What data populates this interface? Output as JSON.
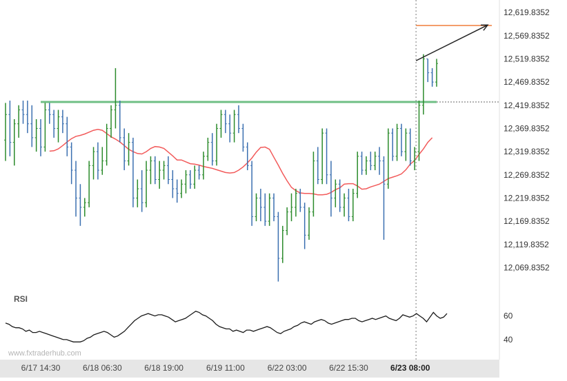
{
  "watermark": "www.fxtraderhub.com",
  "chart_data": [
    {
      "type": "ohlc",
      "pane": "price",
      "y_ticks": [
        "12,619.8352",
        "12,569.8352",
        "12,519.8352",
        "12,469.8352",
        "12,419.8352",
        "12,369.8352",
        "12,319.8352",
        "12,269.8352",
        "12,219.8352",
        "12,169.8352",
        "12,119.8352",
        "12,069.8352"
      ],
      "ylim": [
        12035,
        12635
      ],
      "x_tick_labels": [
        "6/17 14:30",
        "6/18 06:30",
        "6/18 19:00",
        "6/19 11:00",
        "6/22 03:00",
        "6/22 15:30",
        "6/23 08:00"
      ],
      "x_tick_index": [
        8,
        22,
        36,
        50,
        64,
        78,
        92
      ],
      "bars": [
        [
          12345,
          12425,
          12300,
          12400
        ],
        [
          12400,
          12430,
          12310,
          12340
        ],
        [
          12340,
          12390,
          12290,
          12380
        ],
        [
          12380,
          12420,
          12350,
          12410
        ],
        [
          12410,
          12430,
          12380,
          12400
        ],
        [
          12400,
          12430,
          12360,
          12380
        ],
        [
          12380,
          12420,
          12330,
          12350
        ],
        [
          12350,
          12390,
          12320,
          12370
        ],
        [
          12370,
          12390,
          12310,
          12330
        ],
        [
          12330,
          12425,
          12320,
          12410
        ],
        [
          12410,
          12425,
          12380,
          12400
        ],
        [
          12400,
          12410,
          12350,
          12370
        ],
        [
          12370,
          12410,
          12340,
          12395
        ],
        [
          12395,
          12410,
          12360,
          12380
        ],
        [
          12380,
          12395,
          12310,
          12330
        ],
        [
          12330,
          12340,
          12250,
          12280
        ],
        [
          12280,
          12300,
          12180,
          12220
        ],
        [
          12220,
          12250,
          12160,
          12200
        ],
        [
          12200,
          12220,
          12180,
          12210
        ],
        [
          12210,
          12300,
          12200,
          12290
        ],
        [
          12290,
          12330,
          12260,
          12320
        ],
        [
          12320,
          12340,
          12260,
          12280
        ],
        [
          12280,
          12330,
          12270,
          12300
        ],
        [
          12300,
          12380,
          12290,
          12370
        ],
        [
          12370,
          12420,
          12350,
          12410
        ],
        [
          12410,
          12500,
          12370,
          12420
        ],
        [
          12420,
          12430,
          12340,
          12350
        ],
        [
          12350,
          12370,
          12280,
          12300
        ],
        [
          12300,
          12360,
          12290,
          12340
        ],
        [
          12340,
          12350,
          12200,
          12220
        ],
        [
          12220,
          12260,
          12200,
          12240
        ],
        [
          12240,
          12280,
          12190,
          12210
        ],
        [
          12210,
          12300,
          12200,
          12280
        ],
        [
          12280,
          12310,
          12250,
          12300
        ],
        [
          12300,
          12310,
          12250,
          12260
        ],
        [
          12260,
          12300,
          12240,
          12280
        ],
        [
          12280,
          12300,
          12260,
          12290
        ],
        [
          12290,
          12310,
          12250,
          12260
        ],
        [
          12260,
          12280,
          12220,
          12240
        ],
        [
          12240,
          12260,
          12210,
          12230
        ],
        [
          12230,
          12260,
          12220,
          12250
        ],
        [
          12250,
          12280,
          12230,
          12270
        ],
        [
          12270,
          12280,
          12240,
          12250
        ],
        [
          12250,
          12290,
          12240,
          12280
        ],
        [
          12280,
          12290,
          12260,
          12270
        ],
        [
          12270,
          12320,
          12260,
          12310
        ],
        [
          12310,
          12350,
          12300,
          12340
        ],
        [
          12340,
          12360,
          12290,
          12300
        ],
        [
          12300,
          12380,
          12290,
          12370
        ],
        [
          12370,
          12410,
          12350,
          12400
        ],
        [
          12400,
          12410,
          12360,
          12380
        ],
        [
          12380,
          12400,
          12340,
          12360
        ],
        [
          12360,
          12410,
          12340,
          12400
        ],
        [
          12400,
          12420,
          12360,
          12370
        ],
        [
          12370,
          12380,
          12320,
          12330
        ],
        [
          12330,
          12340,
          12280,
          12290
        ],
        [
          12290,
          12300,
          12160,
          12180
        ],
        [
          12180,
          12230,
          12170,
          12220
        ],
        [
          12220,
          12240,
          12170,
          12200
        ],
        [
          12200,
          12230,
          12160,
          12170
        ],
        [
          12170,
          12230,
          12160,
          12220
        ],
        [
          12220,
          12230,
          12170,
          12180
        ],
        [
          12180,
          12190,
          12040,
          12090
        ],
        [
          12090,
          12160,
          12080,
          12150
        ],
        [
          12150,
          12200,
          12140,
          12190
        ],
        [
          12190,
          12230,
          12170,
          12200
        ],
        [
          12200,
          12240,
          12180,
          12230
        ],
        [
          12230,
          12240,
          12190,
          12200
        ],
        [
          12200,
          12210,
          12110,
          12140
        ],
        [
          12140,
          12200,
          12130,
          12190
        ],
        [
          12190,
          12320,
          12180,
          12300
        ],
        [
          12300,
          12330,
          12250,
          12260
        ],
        [
          12260,
          12370,
          12250,
          12360
        ],
        [
          12360,
          12370,
          12250,
          12270
        ],
        [
          12270,
          12300,
          12180,
          12220
        ],
        [
          12220,
          12260,
          12200,
          12250
        ],
        [
          12250,
          12260,
          12190,
          12200
        ],
        [
          12200,
          12230,
          12180,
          12220
        ],
        [
          12220,
          12240,
          12170,
          12180
        ],
        [
          12180,
          12240,
          12170,
          12230
        ],
        [
          12230,
          12320,
          12220,
          12310
        ],
        [
          12310,
          12320,
          12270,
          12280
        ],
        [
          12280,
          12310,
          12270,
          12300
        ],
        [
          12300,
          12320,
          12280,
          12290
        ],
        [
          12290,
          12320,
          12280,
          12310
        ],
        [
          12310,
          12330,
          12270,
          12300
        ],
        [
          12300,
          12310,
          12130,
          12250
        ],
        [
          12250,
          12370,
          12240,
          12360
        ],
        [
          12360,
          12370,
          12300,
          12310
        ],
        [
          12310,
          12380,
          12300,
          12370
        ],
        [
          12370,
          12380,
          12310,
          12320
        ],
        [
          12320,
          12370,
          12300,
          12360
        ],
        [
          12360,
          12370,
          12290,
          12300
        ],
        [
          12300,
          12330,
          12280,
          12320
        ],
        [
          12320,
          12430,
          12300,
          12420
        ],
        [
          12420,
          12530,
          12400,
          12520
        ],
        [
          12520,
          12520,
          12470,
          12490
        ],
        [
          12490,
          12500,
          12460,
          12470
        ],
        [
          12470,
          12520,
          12460,
          12510
        ]
      ],
      "ma": [
        12321,
        12322,
        12326,
        12333,
        12341,
        12348,
        12353,
        12355,
        12358,
        12362,
        12366,
        12368,
        12366,
        12359,
        12352,
        12347,
        12341,
        12333,
        12325,
        12320,
        12316,
        12315,
        12320,
        12327,
        12331,
        12330,
        12327,
        12319,
        12311,
        12302,
        12302,
        12298,
        12294,
        12293,
        12291,
        12288,
        12286,
        12284,
        12281,
        12278,
        12275,
        12274,
        12275,
        12280,
        12287,
        12296,
        12306,
        12319,
        12329,
        12330,
        12325,
        12308,
        12291,
        12273,
        12257,
        12243,
        12236,
        12231,
        12230,
        12230,
        12229,
        12227,
        12227,
        12228,
        12232,
        12238,
        12242,
        12250,
        12251,
        12251,
        12246,
        12239,
        12240,
        12244,
        12247,
        12250,
        12256,
        12262,
        12265,
        12268,
        12272,
        12281,
        12293,
        12301,
        12314,
        12326,
        12340,
        12350
      ],
      "ma_color": "#f25a5a",
      "up_color": "#2a8a2a",
      "down_color": "#3a6fb0",
      "resistance_level": 12427,
      "resistance_color": "#6fbf84",
      "target_level": 12592,
      "target_color": "#f07d3a",
      "last_price": 12510,
      "arrow_from": [
        12516
      ],
      "arrow_to": [
        12593
      ]
    },
    {
      "type": "line",
      "pane": "rsi",
      "label": "RSI",
      "y_ticks": [
        "60",
        "40"
      ],
      "ylim": [
        30,
        72
      ],
      "values": [
        54,
        53,
        51,
        50,
        50,
        49,
        47,
        48,
        46,
        46,
        47,
        46,
        45,
        44,
        43,
        42,
        41,
        40,
        40,
        39,
        38,
        38,
        38,
        39,
        41,
        42,
        44,
        45,
        46,
        47,
        46,
        44,
        42,
        43,
        45,
        47,
        50,
        53,
        56,
        58,
        60,
        61,
        62,
        61,
        60,
        61,
        61,
        60,
        59,
        57,
        55,
        56,
        57,
        58,
        60,
        62,
        64,
        63,
        61,
        60,
        58,
        56,
        53,
        51,
        50,
        49,
        49,
        47,
        48,
        47,
        46,
        48,
        48,
        47,
        48,
        49,
        50,
        51,
        50,
        48,
        46,
        45,
        47,
        48,
        49,
        51,
        52,
        54,
        55,
        54,
        53,
        55,
        56,
        57,
        56,
        54,
        53,
        54,
        55,
        56,
        57,
        57,
        58,
        58,
        56,
        55,
        56,
        57,
        58,
        57,
        58,
        59,
        60,
        58,
        57,
        56,
        58,
        61,
        60,
        59,
        60,
        62,
        60,
        58,
        55,
        59,
        63,
        60,
        58,
        59,
        62
      ],
      "line_color": "#1a1a1a"
    }
  ]
}
